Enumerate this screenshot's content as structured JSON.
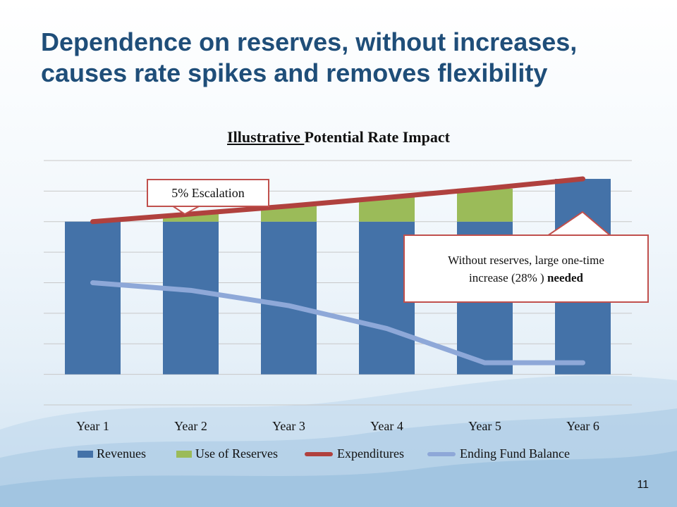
{
  "slide": {
    "title_line1": "Dependence on reserves, without increases,",
    "title_line2": "causes rate spikes and removes flexibility",
    "page_number": "11"
  },
  "chart_title": {
    "underlined": "Illustrative ",
    "rest": "Potential Rate Impact"
  },
  "callouts": {
    "escalation": "5% Escalation",
    "increase_line1": "Without reserves, large one-time",
    "increase_line2_normal": "increase (28% ) ",
    "increase_line2_bold": "needed"
  },
  "chart_data": {
    "type": "bar",
    "stacked": true,
    "categories": [
      "Year 1",
      "Year 2",
      "Year 3",
      "Year 4",
      "Year 5",
      "Year 6"
    ],
    "series": [
      {
        "name": "Revenues",
        "kind": "bar",
        "color": "#4472a8",
        "values": [
          50,
          50,
          50,
          50,
          50,
          64
        ]
      },
      {
        "name": "Use of Reserves",
        "kind": "bar",
        "color": "#9bbb59",
        "values": [
          0,
          2.5,
          5.1,
          7.9,
          10.8,
          0
        ]
      },
      {
        "name": "Expenditures",
        "kind": "line",
        "color": "#b0413e",
        "values": [
          50,
          52.5,
          55.1,
          57.9,
          60.8,
          64
        ]
      },
      {
        "name": "Ending Fund Balance",
        "kind": "line",
        "color": "#8ea8d8",
        "values": [
          30,
          27.5,
          22.5,
          15,
          3.8,
          3.8
        ]
      }
    ],
    "ylim": [
      -10,
      70
    ],
    "grid": true,
    "y_tick_labels_visible": false,
    "legend_position": "bottom"
  }
}
